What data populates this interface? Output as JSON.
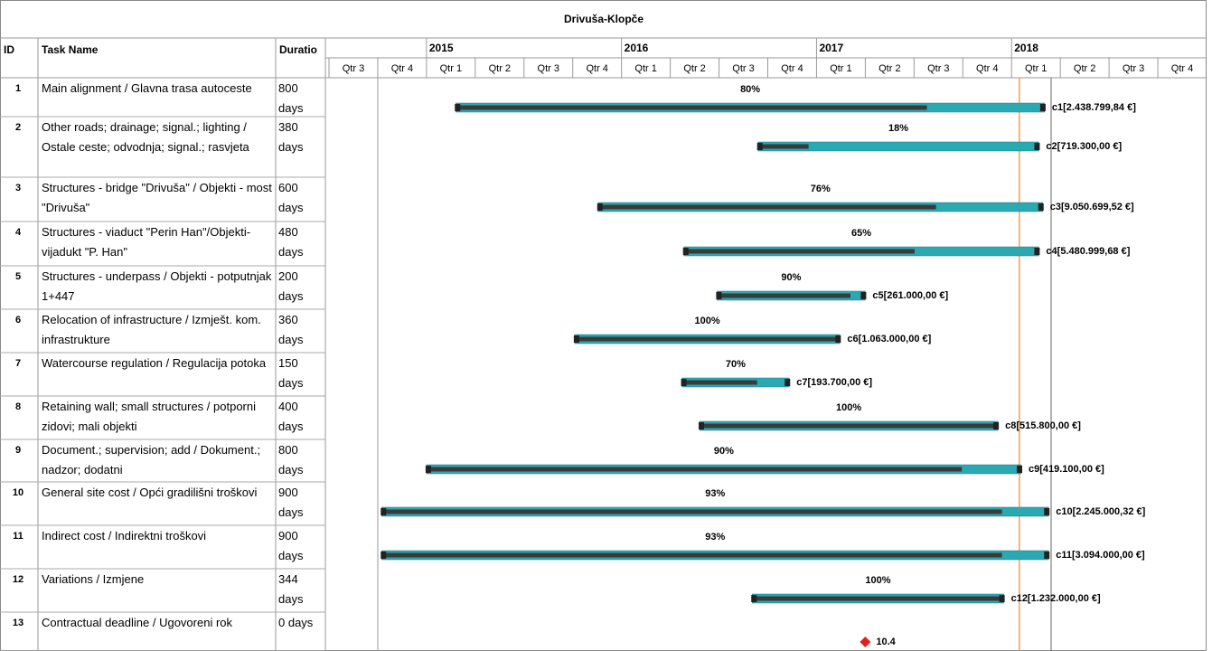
{
  "chart_data": {
    "type": "gantt",
    "title": "Drivuša-Klopče",
    "columns": [
      "ID",
      "Task Name",
      "Duratio"
    ],
    "xlim": [
      2014.5,
      2019
    ],
    "xticks": [
      2015,
      2016,
      2017,
      2018
    ],
    "quarters": [
      "Qtr 3",
      "Qtr 4",
      "Qtr 1",
      "Qtr 2",
      "Qtr 3",
      "Qtr 4",
      "Qtr 1",
      "Qtr 2",
      "Qtr 3",
      "Qtr 4",
      "Qtr 1",
      "Qtr 2",
      "Qtr 3",
      "Qtr 4",
      "Qtr 1",
      "Qtr 2",
      "Qtr 3",
      "Qtr 4"
    ],
    "status_date": 2018.04,
    "bar_color": "#2aa9b2",
    "progress_color": "#3a3a3a",
    "milestone_color": "#e02020",
    "status_color": "#f0a050",
    "tasks": [
      {
        "id": "1",
        "name": "Main alignment / Glavna trasa autoceste",
        "duration": "800 days",
        "start": 2015.15,
        "end": 2018.17,
        "percent": 80,
        "percent_label": "80%",
        "cost_label": "c1[2.438.799,84 €]"
      },
      {
        "id": "2",
        "name": "Other roads; drainage; signal.; lighting / Ostale ceste; odvodnja; signal.; rasvjeta",
        "duration": "380 days",
        "start": 2016.7,
        "end": 2018.14,
        "percent": 18,
        "percent_label": "18%",
        "cost_label": "c2[719.300,00 €]"
      },
      {
        "id": "3",
        "name": "Structures - bridge \"Drivuša\" / Objekti - most \"Drivuša\"",
        "duration": "600 days",
        "start": 2015.88,
        "end": 2018.16,
        "percent": 76,
        "percent_label": "76%",
        "cost_label": "c3[9.050.699,52 €]"
      },
      {
        "id": "4",
        "name": "Structures - viaduct \"Perin Han\"/Objekti-vijadukt \"P. Han\"",
        "duration": "480 days",
        "start": 2016.32,
        "end": 2018.14,
        "percent": 65,
        "percent_label": "65%",
        "cost_label": "c4[5.480.999,68 €]"
      },
      {
        "id": "5",
        "name": "Structures - underpass / Objekti - potputnjak 1+447",
        "duration": "200 days",
        "start": 2016.49,
        "end": 2017.25,
        "percent": 90,
        "percent_label": "90%",
        "cost_label": "c5[261.000,00 €]"
      },
      {
        "id": "6",
        "name": "Relocation of infrastructure / Izmješt. kom. infrastrukture",
        "duration": "360 days",
        "start": 2015.76,
        "end": 2017.12,
        "percent": 100,
        "percent_label": "100%",
        "cost_label": "c6[1.063.000,00 €]"
      },
      {
        "id": "7",
        "name": "Watercourse regulation / Regulacija potoka",
        "duration": "150 days",
        "start": 2016.31,
        "end": 2016.86,
        "percent": 70,
        "percent_label": "70%",
        "cost_label": "c7[193.700,00 €]"
      },
      {
        "id": "8",
        "name": "Retaining wall; small structures / potporni zidovi; mali objekti",
        "duration": "400 days",
        "start": 2016.4,
        "end": 2017.93,
        "percent": 100,
        "percent_label": "100%",
        "cost_label": "c8[515.800,00 €]"
      },
      {
        "id": "9",
        "name": "Document.; supervision; add / Dokument.; nadzor; dodatni",
        "duration": "800 days",
        "start": 2015.0,
        "end": 2018.05,
        "percent": 90,
        "percent_label": "90%",
        "cost_label": "c9[419.100,00 €]"
      },
      {
        "id": "10",
        "name": "General site cost / Opći gradilišni troškovi",
        "duration": "900 days",
        "start": 2014.77,
        "end": 2018.19,
        "percent": 93,
        "percent_label": "93%",
        "cost_label": "c10[2.245.000,32 €]"
      },
      {
        "id": "11",
        "name": "Indirect cost / Indirektni troškovi",
        "duration": "900 days",
        "start": 2014.77,
        "end": 2018.19,
        "percent": 93,
        "percent_label": "93%",
        "cost_label": "c11[3.094.000,00 €]"
      },
      {
        "id": "12",
        "name": "Variations / Izmjene",
        "duration": "344 days",
        "start": 2016.67,
        "end": 2017.96,
        "percent": 100,
        "percent_label": "100%",
        "cost_label": "c12[1.232.000,00 €]"
      },
      {
        "id": "13",
        "name": "Contractual deadline / Ugovoreni rok",
        "duration": "0 days",
        "milestone": 2017.25,
        "cost_label": "10.4"
      }
    ]
  }
}
